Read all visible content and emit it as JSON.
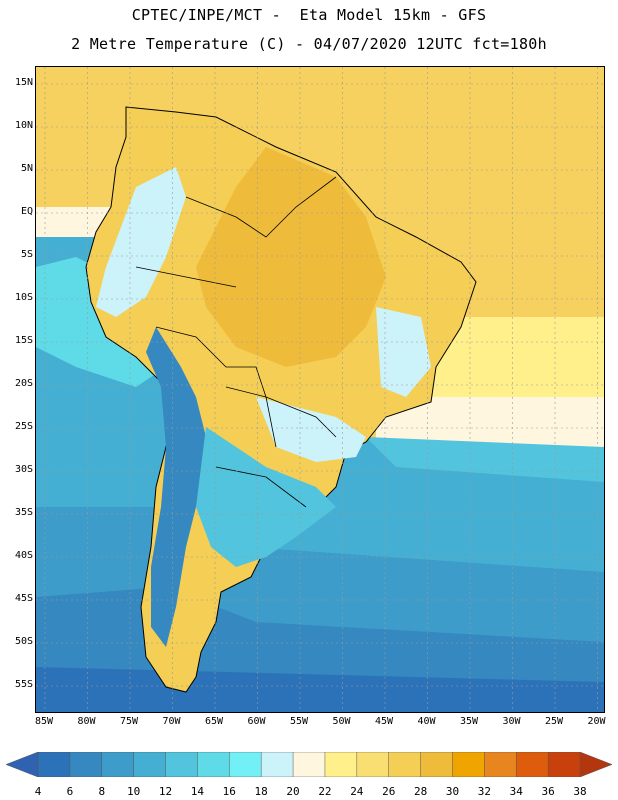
{
  "header": {
    "title_line1": "CPTEC/INPE/MCT -  Eta Model 15km - GFS",
    "title_line2": "2 Metre Temperature (C) - 04/07/2020 12UTC fct=180h"
  },
  "map": {
    "lat_ticks": [
      "15N",
      "10N",
      "5N",
      "EQ",
      "5S",
      "10S",
      "15S",
      "20S",
      "25S",
      "30S",
      "35S",
      "40S",
      "45S",
      "50S",
      "55S"
    ],
    "lon_ticks": [
      "85W",
      "80W",
      "75W",
      "70W",
      "65W",
      "60W",
      "55W",
      "50W",
      "45W",
      "40W",
      "35W",
      "30W",
      "25W",
      "20W"
    ],
    "grid": true,
    "ocean_color": "#f6d160",
    "land_outline_color": "#000000"
  },
  "colorbar": {
    "labels": [
      "4",
      "6",
      "8",
      "10",
      "12",
      "14",
      "16",
      "18",
      "20",
      "22",
      "24",
      "26",
      "28",
      "30",
      "32",
      "34",
      "36",
      "38"
    ],
    "colors": [
      "#2f63b2",
      "#2c72b8",
      "#3688c0",
      "#3d9cc9",
      "#45afd3",
      "#52c4dd",
      "#5fdbe8",
      "#73f0f6",
      "#cdf3fa",
      "#fff6e0",
      "#fff08c",
      "#f9df71",
      "#f5ce55",
      "#efbb3b",
      "#f0a400",
      "#e8851e",
      "#de5d0c",
      "#c8400b",
      "#b4360f"
    ]
  }
}
